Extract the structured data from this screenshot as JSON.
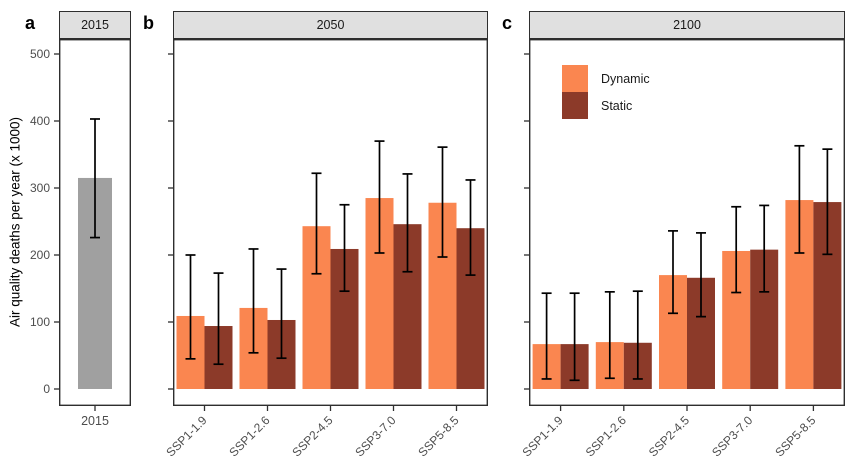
{
  "y_axis": {
    "title": "Air quality deaths per year (x 1000)",
    "ticks": [
      0,
      100,
      200,
      300,
      400,
      500
    ]
  },
  "legend": {
    "items": [
      {
        "label": "Dynamic",
        "series": "Dynamic"
      },
      {
        "label": "Static",
        "series": "Static"
      }
    ]
  },
  "colors": {
    "Dynamic": "#FA8650",
    "Static": "#8C3A29",
    "Baseline": "#A0A0A0",
    "strip_bg": "#E0E0E0",
    "panel_border": "#2e2e2e",
    "error_bar": "#000000",
    "axis_text": "#4d4d4d"
  },
  "chart_data": [
    {
      "type": "bar",
      "letter": "a",
      "title": "2015",
      "categories": [
        "2015"
      ],
      "rotated_labels": false,
      "show_y_tick_labels": true,
      "show_legend": false,
      "ylim": [
        0,
        524
      ],
      "yticks": [
        0,
        100,
        200,
        300,
        400,
        500
      ],
      "ylabel": "Air quality deaths per year (x 1000)",
      "series": [
        {
          "name": "Baseline",
          "values": [
            315
          ],
          "err_low": [
            226
          ],
          "err_high": [
            403
          ]
        }
      ]
    },
    {
      "type": "bar",
      "letter": "b",
      "title": "2050",
      "categories": [
        "SSP1-1.9",
        "SSP1-2.6",
        "SSP2-4.5",
        "SSP3-7.0",
        "SSP5-8.5"
      ],
      "rotated_labels": true,
      "show_y_tick_labels": false,
      "show_legend": false,
      "ylim": [
        0,
        524
      ],
      "yticks": [
        0,
        100,
        200,
        300,
        400,
        500
      ],
      "series": [
        {
          "name": "Dynamic",
          "values": [
            109,
            121,
            243,
            285,
            278
          ],
          "err_low": [
            45,
            54,
            172,
            203,
            197
          ],
          "err_high": [
            200,
            209,
            322,
            370,
            361
          ]
        },
        {
          "name": "Static",
          "values": [
            94,
            103,
            209,
            246,
            240
          ],
          "err_low": [
            37,
            46,
            146,
            175,
            170
          ],
          "err_high": [
            173,
            179,
            275,
            321,
            312
          ]
        }
      ]
    },
    {
      "type": "bar",
      "letter": "c",
      "title": "2100",
      "categories": [
        "SSP1-1.9",
        "SSP1-2.6",
        "SSP2-4.5",
        "SSP3-7.0",
        "SSP5-8.5"
      ],
      "rotated_labels": true,
      "show_y_tick_labels": false,
      "show_legend": true,
      "ylim": [
        0,
        524
      ],
      "yticks": [
        0,
        100,
        200,
        300,
        400,
        500
      ],
      "series": [
        {
          "name": "Dynamic",
          "values": [
            67,
            70,
            170,
            206,
            282
          ],
          "err_low": [
            15,
            16,
            113,
            144,
            203
          ],
          "err_high": [
            143,
            145,
            236,
            272,
            363
          ]
        },
        {
          "name": "Static",
          "values": [
            67,
            69,
            166,
            208,
            279
          ],
          "err_low": [
            13,
            15,
            108,
            145,
            201
          ],
          "err_high": [
            143,
            146,
            233,
            274,
            358
          ]
        }
      ]
    }
  ]
}
